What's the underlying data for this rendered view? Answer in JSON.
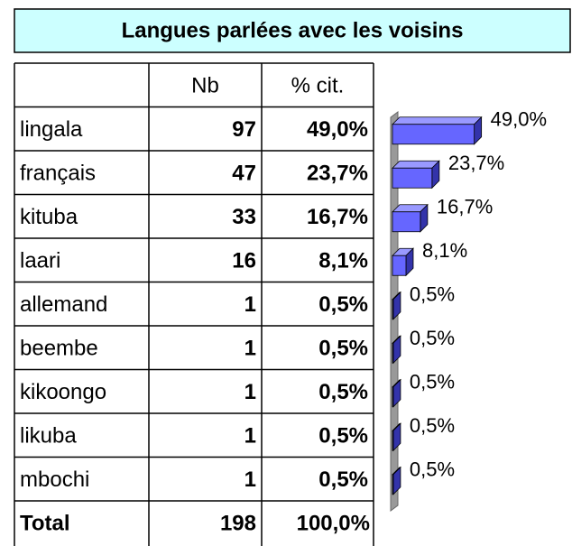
{
  "title": "Langues parlées avec les voisins",
  "table": {
    "header": [
      "Nb",
      "% cit."
    ],
    "rows": [
      {
        "label": "lingala",
        "nb": 97,
        "pct": "49,0%",
        "percent": 49.0
      },
      {
        "label": "français",
        "nb": 47,
        "pct": "23,7%",
        "percent": 23.7
      },
      {
        "label": "kituba",
        "nb": 33,
        "pct": "16,7%",
        "percent": 16.7
      },
      {
        "label": "laari",
        "nb": 16,
        "pct": "8,1%",
        "percent": 8.1
      },
      {
        "label": "allemand",
        "nb": 1,
        "pct": "0,5%",
        "percent": 0.5
      },
      {
        "label": "beembe",
        "nb": 1,
        "pct": "0,5%",
        "percent": 0.5
      },
      {
        "label": "kikoongo",
        "nb": 1,
        "pct": "0,5%",
        "percent": 0.5
      },
      {
        "label": "likuba",
        "nb": 1,
        "pct": "0,5%",
        "percent": 0.5
      },
      {
        "label": "mbochi",
        "nb": 1,
        "pct": "0,5%",
        "percent": 0.5
      }
    ],
    "total": {
      "label": "Total",
      "nb": 198,
      "pct": "100,0%"
    }
  }
}
